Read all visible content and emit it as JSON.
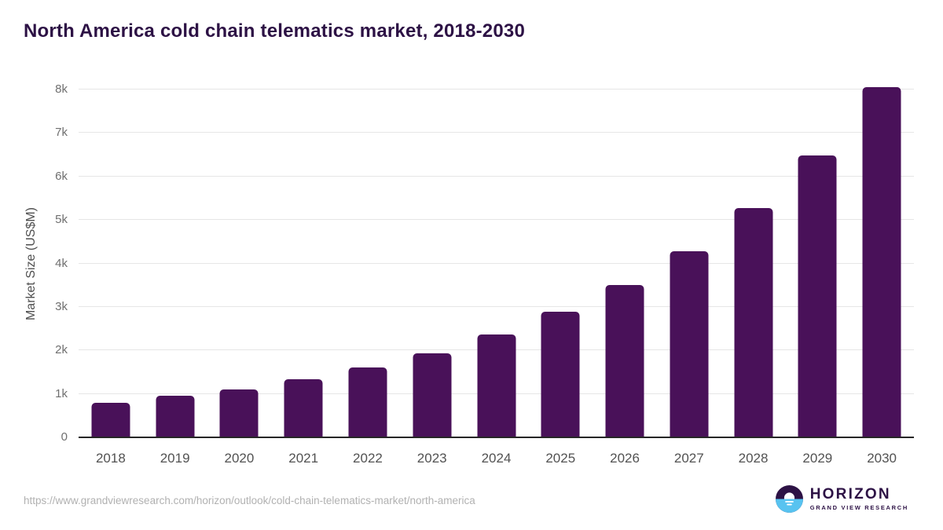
{
  "title": "North America cold chain telematics market, 2018-2030",
  "footer": {
    "source_url": "https://www.grandviewresearch.com/horizon/outlook/cold-chain-telematics-market/north-america",
    "logo_name": "HORIZON",
    "logo_subtitle": "GRAND VIEW RESEARCH"
  },
  "colors": {
    "bar": "#491159",
    "title": "#2d1245",
    "axis_line": "#262626",
    "gridline": "#e6e6e6",
    "logo_blue": "#58c3f0",
    "logo_purple": "#2d1245"
  },
  "chart_data": {
    "type": "bar",
    "title": "North America cold chain telematics market, 2018-2030",
    "categories": [
      "2018",
      "2019",
      "2020",
      "2021",
      "2022",
      "2023",
      "2024",
      "2025",
      "2026",
      "2027",
      "2028",
      "2029",
      "2030"
    ],
    "values": [
      795,
      960,
      1095,
      1335,
      1600,
      1930,
      2370,
      2885,
      3500,
      4280,
      5280,
      6480,
      8060
    ],
    "xlabel": "",
    "ylabel": "Market Size (US$M)",
    "ylim": [
      0,
      8000
    ],
    "yticks": [
      "0",
      "1k",
      "2k",
      "3k",
      "4k",
      "5k",
      "6k",
      "7k",
      "8k"
    ],
    "grid": true,
    "legend": false,
    "bar_color": "#491159"
  }
}
